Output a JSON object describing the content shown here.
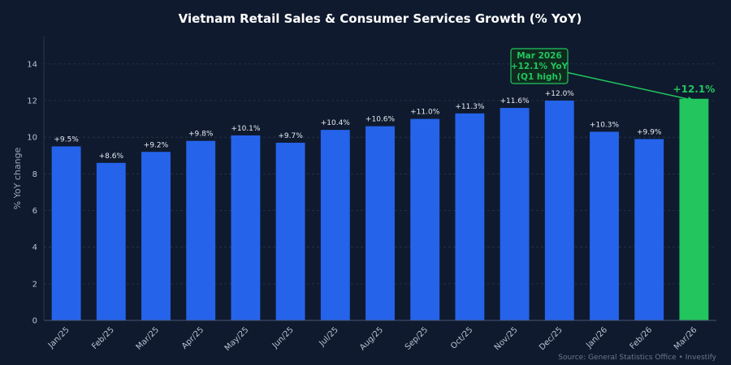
{
  "chart_data": {
    "type": "bar",
    "title": "Vietnam Retail Sales & Consumer Services Growth (% YoY)",
    "ylabel": "% YoY change",
    "xlabel": "",
    "ylim": [
      0,
      15.5
    ],
    "yticks": [
      0,
      2,
      4,
      6,
      8,
      10,
      12,
      14
    ],
    "grid": true,
    "categories": [
      "Jan/25",
      "Feb/25",
      "Mar/25",
      "Apr/25",
      "May/25",
      "Jun/25",
      "Jul/25",
      "Aug/25",
      "Sep/25",
      "Oct/25",
      "Nov/25",
      "Dec/25",
      "Jan/26",
      "Feb/26",
      "Mar/26"
    ],
    "values": [
      9.5,
      8.6,
      9.2,
      9.8,
      10.1,
      9.7,
      10.4,
      10.6,
      11.0,
      11.3,
      11.6,
      12.0,
      10.3,
      9.9,
      12.1
    ],
    "data_labels": [
      "+9.5%",
      "+8.6%",
      "+9.2%",
      "+9.8%",
      "+10.1%",
      "+9.7%",
      "+10.4%",
      "+10.6%",
      "+11.0%",
      "+11.3%",
      "+11.6%",
      "+12.0%",
      "+10.3%",
      "+9.9%",
      "+12.1%"
    ],
    "highlight_index": 14,
    "colors": {
      "bar": "#2563eb",
      "highlight": "#22c55e",
      "background": "#0f1a2e",
      "grid": "#2a3650"
    },
    "annotation": {
      "lines": [
        "Mar 2026",
        "+12.1% YoY",
        "(Q1 high)"
      ],
      "target_index": 14
    }
  },
  "source": "Source: General Statistics Office  •  Investify"
}
